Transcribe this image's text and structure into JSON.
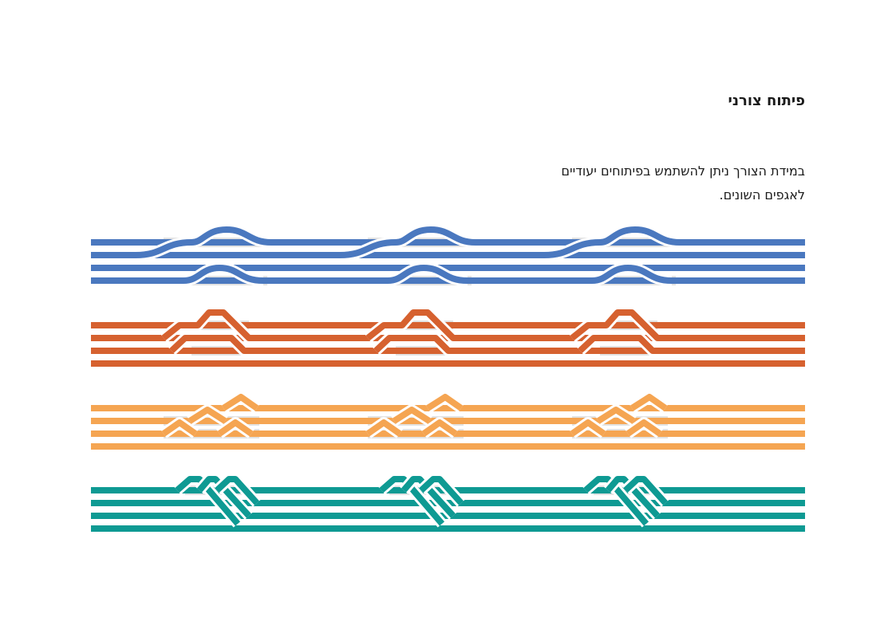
{
  "header": {
    "title": "פיתוח צורני"
  },
  "description": {
    "line1": "במידת הצורך ניתן להשתמש בפיתוחים יעודיים",
    "line2": "לאגפים השונים."
  },
  "bands": [
    {
      "name": "blue-band",
      "color": "#4a78bf",
      "style": "curved-swap",
      "lines": 4,
      "repeats": 3
    },
    {
      "name": "red-orange-band",
      "color": "#d6612f",
      "style": "trapezoid-bump",
      "lines": 4,
      "repeats": 3
    },
    {
      "name": "light-orange-band",
      "color": "#f5a552",
      "style": "triangle-peaks",
      "lines": 4,
      "repeats": 3
    },
    {
      "name": "teal-band",
      "color": "#0e9a93",
      "style": "diagonal-braid",
      "lines": 4,
      "repeats": 3
    }
  ],
  "colors": {
    "shadow": "#e2e2e2",
    "background": "#ffffff"
  }
}
